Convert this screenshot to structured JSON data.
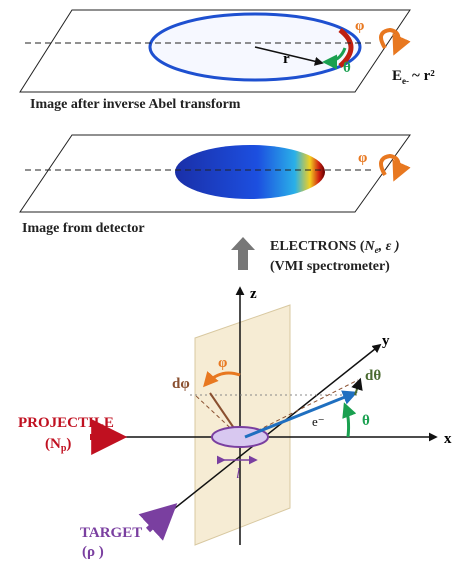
{
  "panels": [
    {
      "caption": "Image after inverse Abel transform",
      "radius_label": "r",
      "theta_label": "θ",
      "phi_label": "φ"
    },
    {
      "caption": "Image from detector",
      "phi_label": "φ"
    }
  ],
  "energy": {
    "symbol": "E",
    "subscript": "e-",
    "relation": "~ r²"
  },
  "electrons": {
    "label": "ELECTRONS (",
    "n": "N",
    "n_sub": "e",
    "rest": ", ε )",
    "spectrometer": "(VMI spectrometer)"
  },
  "axes": {
    "z": "z",
    "y": "y",
    "x": "x"
  },
  "angles": {
    "phi": "φ",
    "dphi": "dφ",
    "theta": "θ",
    "dtheta": "dθ",
    "electron": "e⁻",
    "length": "l"
  },
  "projectile": {
    "label": "PROJECTILE",
    "open": "(N",
    "sub": "p",
    "close": ")"
  },
  "target": {
    "label": "TARGET",
    "density": "(ρ )"
  }
}
